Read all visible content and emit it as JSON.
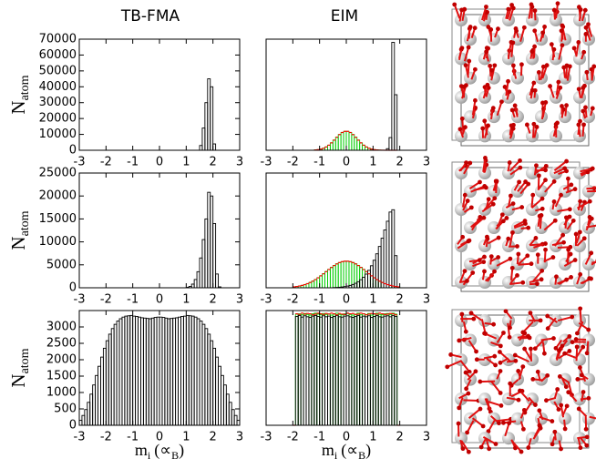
{
  "column_titles": [
    "TB-FMA",
    "EIM"
  ],
  "chart_data": [
    {
      "type": "histogram",
      "xlim": [
        -3,
        3
      ],
      "xticks": [
        -3,
        -2,
        -1,
        0,
        1,
        2,
        3
      ],
      "ylim": [
        0,
        70000
      ],
      "yticks": [
        0,
        10000,
        20000,
        30000,
        40000,
        50000,
        60000,
        70000
      ],
      "ylabel": "N",
      "ylabel_sub": "atom",
      "bins": [
        1.5,
        1.6,
        1.7,
        1.8,
        1.9,
        2.0,
        2.1
      ],
      "series": [
        {
          "style": "bar",
          "color": "#000000",
          "values": [
            3000,
            14000,
            30000,
            45000,
            40000,
            4000
          ]
        }
      ]
    },
    {
      "type": "histogram",
      "xlim": [
        -3,
        3
      ],
      "xticks": [
        -3,
        -2,
        -1,
        0,
        1,
        2,
        3
      ],
      "ylim": [
        0,
        70000
      ],
      "bins": [
        -1.2,
        -1.1,
        -1.0,
        -0.9,
        -0.8,
        -0.7,
        -0.6,
        -0.5,
        -0.4,
        -0.3,
        -0.2,
        -0.1,
        0,
        0.1,
        0.2,
        0.3,
        0.4,
        0.5,
        0.6,
        0.7,
        0.8,
        0.9,
        1.0,
        1.1,
        1.2,
        1.3,
        1.4,
        1.5,
        1.6,
        1.7,
        1.8,
        1.9
      ],
      "series": [
        {
          "style": "bar",
          "color": "#00cc00",
          "values": [
            190,
            380,
            715,
            1250,
            2070,
            3200,
            4660,
            6370,
            8180,
            9870,
            11190,
            11900,
            11900,
            11190,
            9870,
            8180,
            6370,
            4660,
            3200,
            2070,
            1250,
            715,
            380,
            190,
            90,
            40,
            15,
            5,
            0,
            0,
            0
          ]
        },
        {
          "style": "bar",
          "color": "#000000",
          "values": [
            0,
            0,
            0,
            0,
            0,
            0,
            0,
            0,
            0,
            0,
            0,
            0,
            0,
            0,
            0,
            0,
            0,
            0,
            0,
            0,
            0,
            0,
            0,
            0,
            0,
            0,
            0,
            1000,
            8000,
            68000,
            35000
          ]
        },
        {
          "style": "line",
          "color": "#ff0000",
          "values": [
            190,
            380,
            715,
            1250,
            2070,
            3200,
            4660,
            6370,
            8180,
            9870,
            11190,
            11900,
            11900,
            11190,
            9870,
            8180,
            6370,
            4660,
            3200,
            2070,
            1250,
            715,
            380,
            190,
            90,
            40,
            15,
            5,
            0,
            0,
            0
          ]
        }
      ]
    },
    {
      "type": "histogram",
      "xlim": [
        -3,
        3
      ],
      "xticks": [
        -3,
        -2,
        -1,
        0,
        1,
        2,
        3
      ],
      "ylim": [
        0,
        25000
      ],
      "yticks": [
        0,
        5000,
        10000,
        15000,
        20000,
        25000
      ],
      "ylabel": "N",
      "ylabel_sub": "atom",
      "bins": [
        1.0,
        1.1,
        1.2,
        1.3,
        1.4,
        1.5,
        1.6,
        1.7,
        1.8,
        1.9,
        2.0,
        2.1,
        2.2,
        2.3
      ],
      "series": [
        {
          "style": "bar",
          "color": "#000000",
          "values": [
            100,
            300,
            800,
            1800,
            3500,
            6500,
            10500,
            15000,
            20800,
            20000,
            14000,
            3000,
            200
          ]
        }
      ]
    },
    {
      "type": "histogram",
      "xlim": [
        -3,
        3
      ],
      "xticks": [
        -3,
        -2,
        -1,
        0,
        1,
        2,
        3
      ],
      "ylim": [
        0,
        25000
      ],
      "bins": [
        -2.0,
        -1.9,
        -1.8,
        -1.7,
        -1.6,
        -1.5,
        -1.4,
        -1.3,
        -1.2,
        -1.1,
        -1.0,
        -0.9,
        -0.8,
        -0.7,
        -0.6,
        -0.5,
        -0.4,
        -0.3,
        -0.2,
        -0.1,
        0,
        0.1,
        0.2,
        0.3,
        0.4,
        0.5,
        0.6,
        0.7,
        0.8,
        0.9,
        1.0,
        1.1,
        1.2,
        1.3,
        1.4,
        1.5,
        1.6,
        1.7,
        1.8,
        1.9,
        2.0
      ],
      "series": [
        {
          "style": "bar",
          "color": "#00cc00",
          "values": [
            197,
            277,
            382,
            516,
            684,
            893,
            1148,
            1444,
            1786,
            2175,
            2598,
            3045,
            3521,
            3985,
            4431,
            4843,
            5203,
            5487,
            5684,
            5788,
            5788,
            5684,
            5487,
            5203,
            4843,
            4431,
            3985,
            3521,
            3045,
            2598,
            2175,
            1786,
            1444,
            1148,
            893,
            684,
            516,
            382,
            277,
            197
          ]
        },
        {
          "style": "bar",
          "color": "#000000",
          "values": [
            0,
            0,
            0,
            0,
            0,
            0,
            0,
            0,
            0,
            0,
            0,
            0,
            0,
            0,
            0,
            50,
            80,
            120,
            180,
            260,
            370,
            520,
            720,
            980,
            1320,
            1760,
            2300,
            2980,
            3800,
            4800,
            6000,
            7400,
            9000,
            10800,
            12600,
            14500,
            16500,
            17000,
            7000,
            0
          ]
        },
        {
          "style": "line",
          "color": "#ff0000",
          "values": [
            197,
            277,
            382,
            516,
            684,
            893,
            1148,
            1444,
            1786,
            2175,
            2598,
            3045,
            3521,
            3985,
            4431,
            4843,
            5203,
            5487,
            5684,
            5788,
            5788,
            5684,
            5487,
            5203,
            4843,
            4431,
            3985,
            3521,
            3045,
            2598,
            2175,
            1786,
            1444,
            1148,
            893,
            684,
            516,
            382,
            277,
            197
          ]
        }
      ]
    },
    {
      "type": "histogram",
      "xlim": [
        -3,
        3
      ],
      "xticks": [
        -3,
        -2,
        -1,
        0,
        1,
        2,
        3
      ],
      "ylim": [
        0,
        3500
      ],
      "yticks": [
        0,
        500,
        1000,
        1500,
        2000,
        2500,
        3000
      ],
      "ylabel": "N",
      "ylabel_sub": "atom",
      "xlabel": "m",
      "xlabel_sub": "i",
      "xlabel_unit": "(∝",
      "xlabel_unit_sub": "B",
      "xlabel_end": ")",
      "bins": [
        -3.0,
        -2.9,
        -2.8,
        -2.7,
        -2.6,
        -2.5,
        -2.4,
        -2.3,
        -2.2,
        -2.1,
        -2.0,
        -1.9,
        -1.8,
        -1.7,
        -1.6,
        -1.5,
        -1.4,
        -1.3,
        -1.2,
        -1.1,
        -1.0,
        -0.9,
        -0.8,
        -0.7,
        -0.6,
        -0.5,
        -0.4,
        -0.3,
        -0.2,
        -0.1,
        0,
        0.1,
        0.2,
        0.3,
        0.4,
        0.5,
        0.6,
        0.7,
        0.8,
        0.9,
        1.0,
        1.1,
        1.2,
        1.3,
        1.4,
        1.5,
        1.6,
        1.7,
        1.8,
        1.9,
        2.0,
        2.1,
        2.2,
        2.3,
        2.4,
        2.5,
        2.6,
        2.7,
        2.8,
        2.9,
        3.0
      ],
      "series": [
        {
          "style": "bar",
          "color": "#000000",
          "values": [
            150,
            300,
            480,
            700,
            950,
            1230,
            1520,
            1800,
            2080,
            2350,
            2580,
            2780,
            2950,
            3080,
            3180,
            3250,
            3300,
            3330,
            3340,
            3350,
            3330,
            3320,
            3300,
            3280,
            3270,
            3260,
            3250,
            3270,
            3290,
            3300,
            3300,
            3290,
            3270,
            3250,
            3260,
            3270,
            3280,
            3300,
            3320,
            3330,
            3350,
            3340,
            3330,
            3300,
            3250,
            3180,
            3080,
            2950,
            2780,
            2580,
            2350,
            2080,
            1800,
            1520,
            1230,
            950,
            700,
            480,
            300,
            150
          ]
        }
      ]
    },
    {
      "type": "histogram",
      "xlim": [
        -3,
        3
      ],
      "xticks": [
        -3,
        -2,
        -1,
        0,
        1,
        2,
        3
      ],
      "ylim": [
        0,
        3500
      ],
      "xlabel": "m",
      "xlabel_sub": "i",
      "xlabel_unit": "(∝",
      "xlabel_unit_sub": "B",
      "xlabel_end": ")",
      "bins": [
        -2.0,
        -1.9,
        -1.8,
        -1.7,
        -1.6,
        -1.5,
        -1.4,
        -1.3,
        -1.2,
        -1.1,
        -1.0,
        -0.9,
        -0.8,
        -0.7,
        -0.6,
        -0.5,
        -0.4,
        -0.3,
        -0.2,
        -0.1,
        0,
        0.1,
        0.2,
        0.3,
        0.4,
        0.5,
        0.6,
        0.7,
        0.8,
        0.9,
        1.0,
        1.1,
        1.2,
        1.3,
        1.4,
        1.5,
        1.6,
        1.7,
        1.8,
        1.9,
        2.0
      ],
      "series": [
        {
          "style": "bar",
          "color": "#00cc00",
          "values": [
            0,
            3390,
            3400,
            3370,
            3410,
            3380,
            3360,
            3400,
            3420,
            3390,
            3370,
            3410,
            3380,
            3400,
            3360,
            3390,
            3420,
            3380,
            3370,
            3400,
            3410,
            3380,
            3360,
            3390,
            3420,
            3370,
            3400,
            3380,
            3410,
            3360,
            3390,
            3420,
            3380,
            3370,
            3400,
            3410,
            3380,
            3420,
            3390,
            0
          ]
        },
        {
          "style": "bar",
          "color": "#000000",
          "values": [
            0,
            3320,
            3350,
            3300,
            3340,
            3310,
            3290,
            3330,
            3350,
            3320,
            3300,
            3340,
            3310,
            3330,
            3290,
            3320,
            3350,
            3310,
            3300,
            3330,
            3340,
            3310,
            3290,
            3320,
            3350,
            3300,
            3330,
            3310,
            3340,
            3290,
            3320,
            3350,
            3310,
            3300,
            3330,
            3340,
            3310,
            3350,
            3320,
            0
          ]
        },
        {
          "style": "line",
          "color": "#ff0000",
          "values": [
            0,
            3400,
            3380,
            3420,
            3390,
            3410,
            3400,
            3370,
            3390,
            3420,
            3400,
            3380,
            3410,
            3390,
            3420,
            3400,
            3370,
            3410,
            3390,
            3380,
            3420,
            3400,
            3410,
            3380,
            3390,
            3420,
            3400,
            3370,
            3390,
            3410,
            3400,
            3390,
            3420,
            3400,
            3380,
            3390,
            3410,
            3400,
            3370,
            0
          ]
        }
      ]
    }
  ]
}
